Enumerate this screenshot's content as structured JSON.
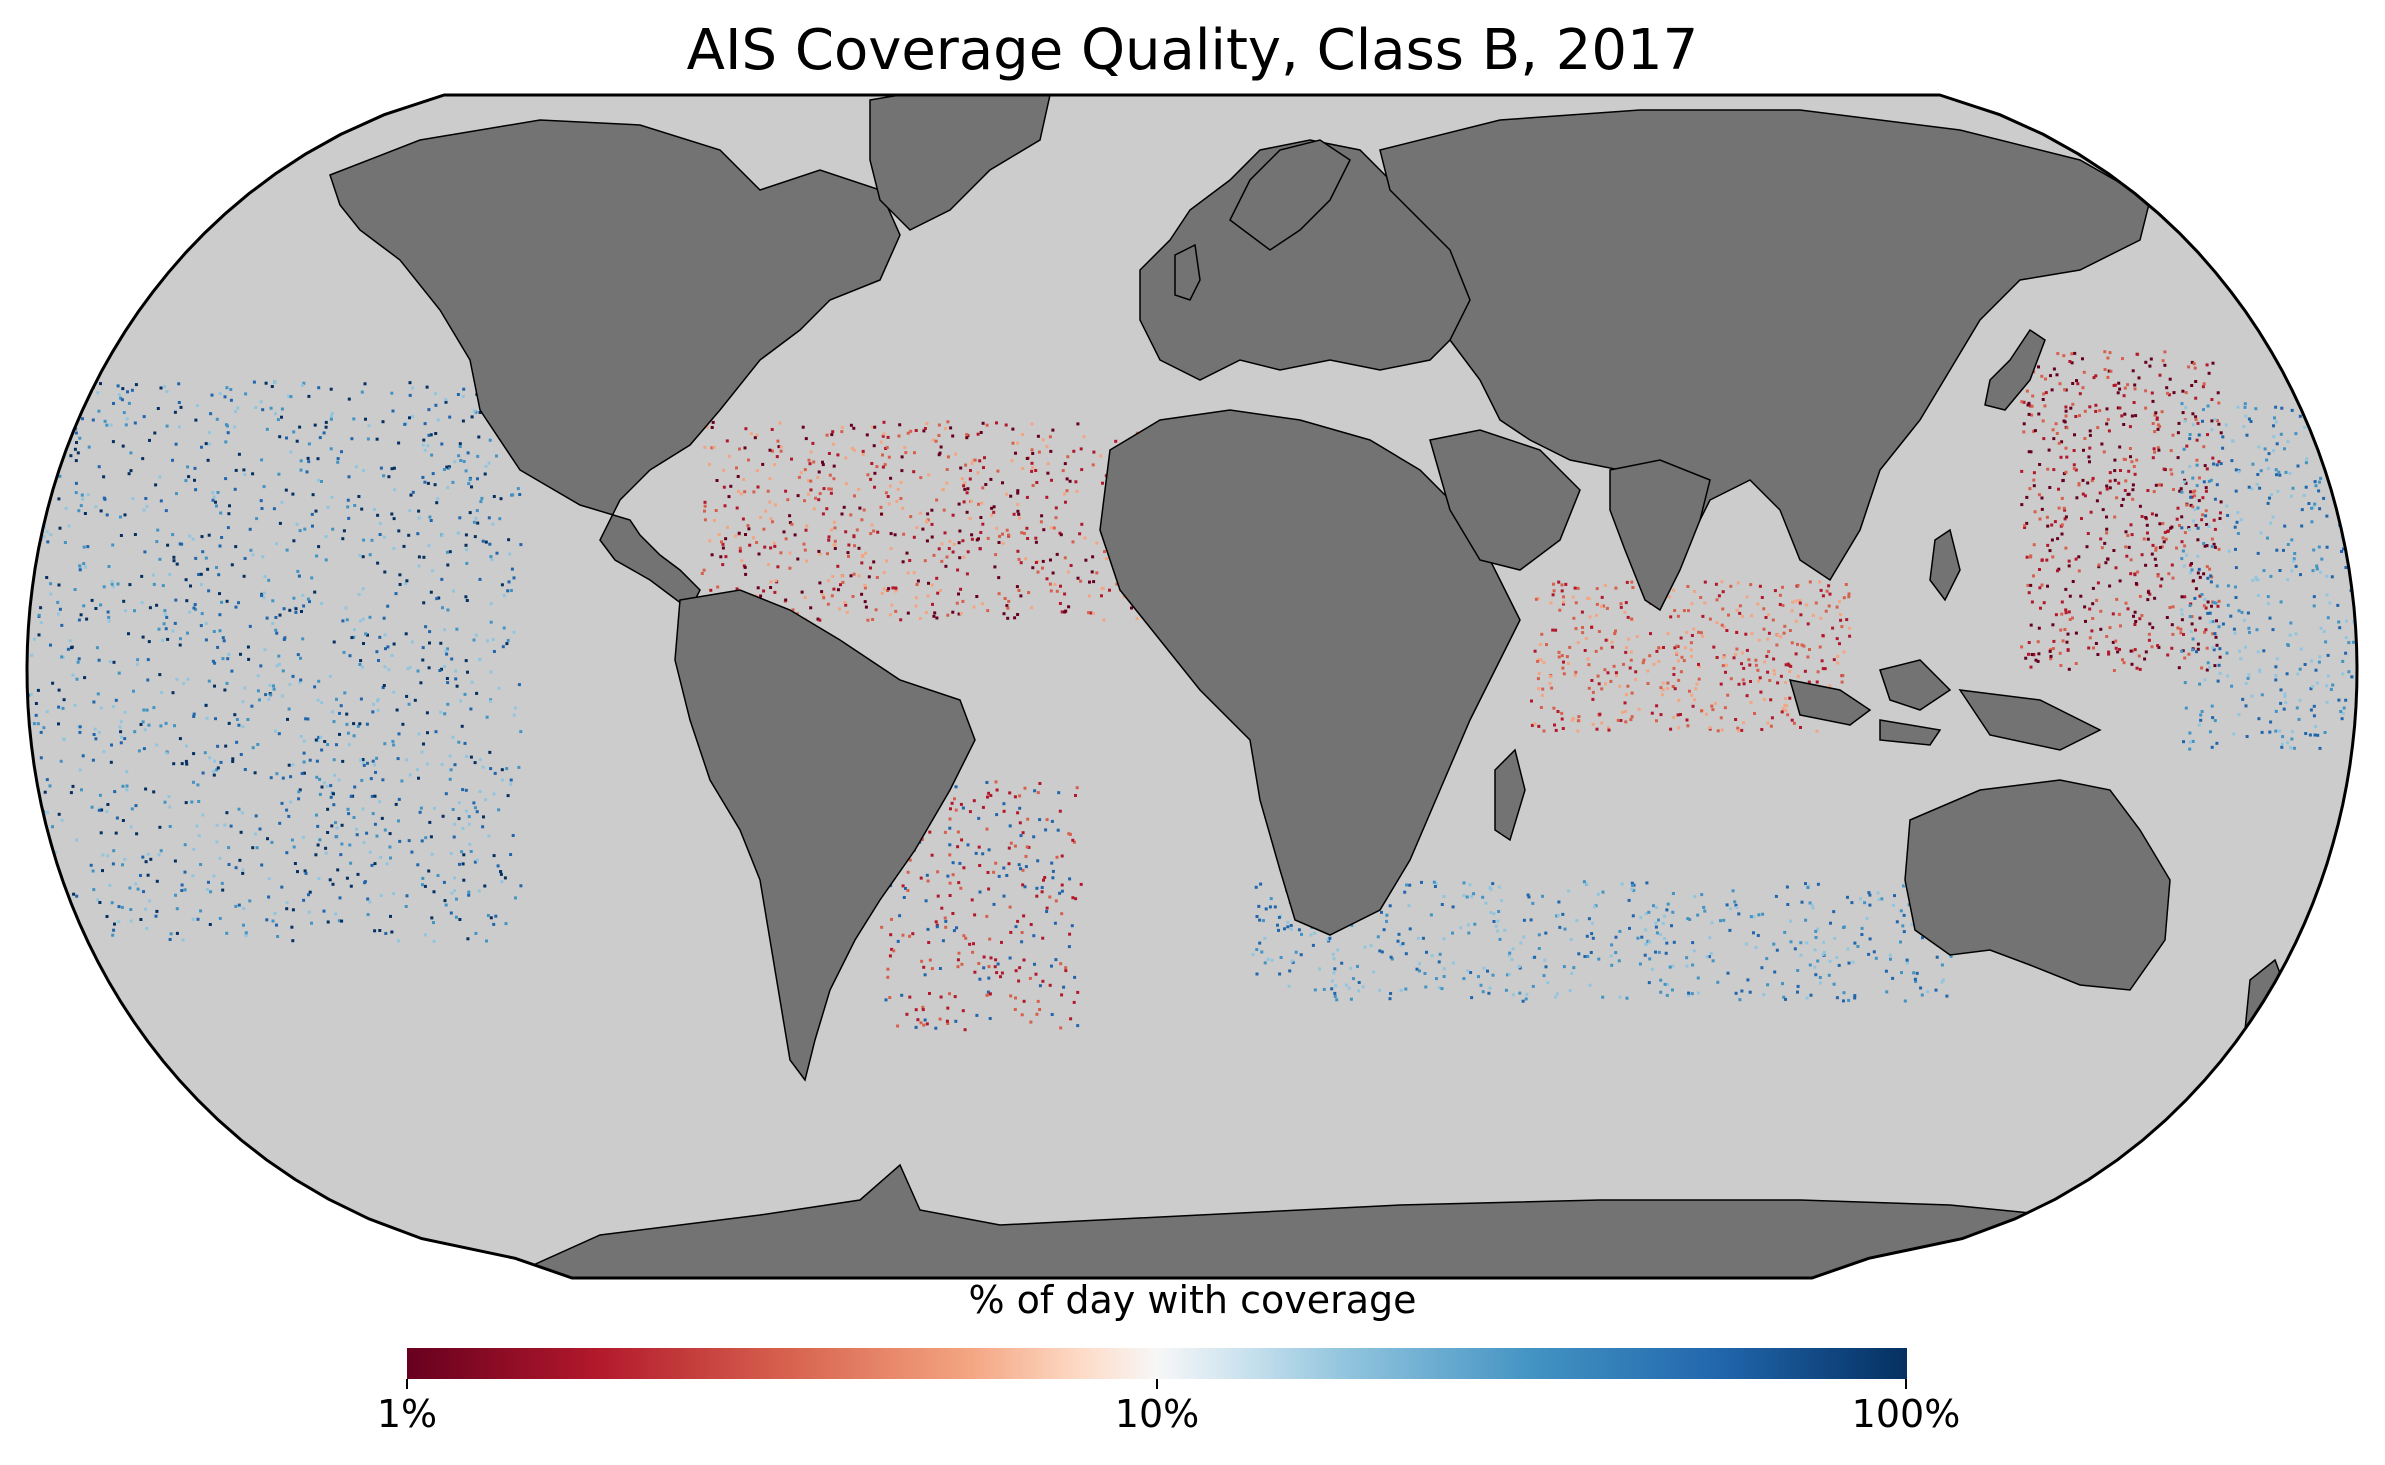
{
  "title": "AIS Coverage Quality, Class B, 2017",
  "colorbar": {
    "label": "% of day with coverage",
    "ticks": [
      "1%",
      "10%",
      "100%"
    ],
    "scale": "log",
    "range": [
      1,
      100
    ],
    "colormap": "RdBu"
  },
  "colors": {
    "ocean_background": "#cccccc",
    "land": "#737373",
    "border_lines": "#000000",
    "low_coverage": "#67001f",
    "mid_coverage": "#f7f7f7",
    "high_coverage": "#053061"
  }
}
